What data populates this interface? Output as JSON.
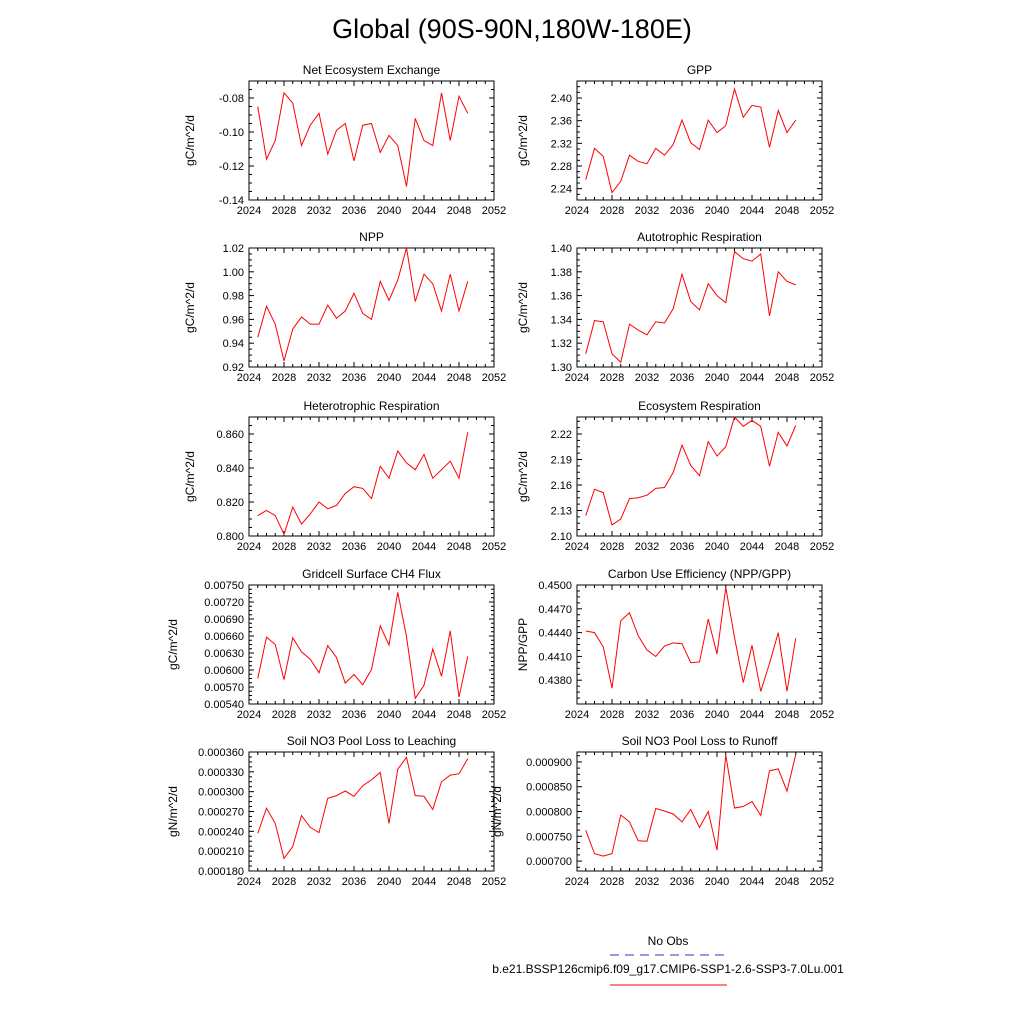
{
  "figure_title": "Global (90S-90N,180W-180E)",
  "legend": {
    "entries": [
      {
        "label": "No Obs",
        "color": "#3333cc",
        "dash": true
      },
      {
        "label": "b.e21.BSSP126cmip6.f09_g17.CMIP6-SSP1-2.6-SSP3-7.0Lu.001",
        "color": "#ff0000",
        "dash": false
      }
    ]
  },
  "chart_data": [
    {
      "type": "line",
      "title": "Net Ecosystem Exchange",
      "ylabel": "gC/m^2/d",
      "xlim": [
        2024,
        2052
      ],
      "xticks": [
        2024,
        2028,
        2032,
        2036,
        2040,
        2044,
        2048,
        2052
      ],
      "ylim": [
        -0.14,
        -0.07
      ],
      "yticks": [
        -0.14,
        -0.12,
        -0.1,
        -0.08
      ],
      "ytick_labels": [
        "-0.14",
        "-0.12",
        "-0.10",
        "-0.08"
      ],
      "series": [
        {
          "color": "#ff0000",
          "x": [
            2025,
            2026,
            2027,
            2028,
            2029,
            2030,
            2031,
            2032,
            2033,
            2034,
            2035,
            2036,
            2037,
            2038,
            2039,
            2040,
            2041,
            2042,
            2043,
            2044,
            2045,
            2046,
            2047,
            2048,
            2049
          ],
          "y": [
            -0.085,
            -0.116,
            -0.105,
            -0.077,
            -0.083,
            -0.108,
            -0.096,
            -0.089,
            -0.113,
            -0.099,
            -0.095,
            -0.117,
            -0.096,
            -0.095,
            -0.112,
            -0.102,
            -0.108,
            -0.132,
            -0.092,
            -0.105,
            -0.108,
            -0.077,
            -0.105,
            -0.079,
            -0.089
          ]
        }
      ]
    },
    {
      "type": "line",
      "title": "GPP",
      "ylabel": "gC/m^2/d",
      "xlim": [
        2024,
        2052
      ],
      "xticks": [
        2024,
        2028,
        2032,
        2036,
        2040,
        2044,
        2048,
        2052
      ],
      "ylim": [
        2.22,
        2.43
      ],
      "yticks": [
        2.24,
        2.28,
        2.32,
        2.36,
        2.4
      ],
      "ytick_labels": [
        "2.24",
        "2.28",
        "2.32",
        "2.36",
        "2.40"
      ],
      "series": [
        {
          "color": "#ff0000",
          "x": [
            2025,
            2026,
            2027,
            2028,
            2029,
            2030,
            2031,
            2032,
            2033,
            2034,
            2035,
            2036,
            2037,
            2038,
            2039,
            2040,
            2041,
            2042,
            2043,
            2044,
            2045,
            2046,
            2047,
            2048,
            2049
          ],
          "y": [
            2.256,
            2.311,
            2.297,
            2.233,
            2.253,
            2.299,
            2.288,
            2.284,
            2.311,
            2.299,
            2.318,
            2.361,
            2.321,
            2.309,
            2.361,
            2.339,
            2.351,
            2.416,
            2.366,
            2.387,
            2.384,
            2.313,
            2.378,
            2.339,
            2.361
          ]
        }
      ]
    },
    {
      "type": "line",
      "title": "NPP",
      "ylabel": "gC/m^2/d",
      "xlim": [
        2024,
        2052
      ],
      "xticks": [
        2024,
        2028,
        2032,
        2036,
        2040,
        2044,
        2048,
        2052
      ],
      "ylim": [
        0.92,
        1.02
      ],
      "yticks": [
        0.92,
        0.94,
        0.96,
        0.98,
        1.0,
        1.02
      ],
      "ytick_labels": [
        "0.92",
        "0.94",
        "0.96",
        "0.98",
        "1.00",
        "1.02"
      ],
      "series": [
        {
          "color": "#ff0000",
          "x": [
            2025,
            2026,
            2027,
            2028,
            2029,
            2030,
            2031,
            2032,
            2033,
            2034,
            2035,
            2036,
            2037,
            2038,
            2039,
            2040,
            2041,
            2042,
            2043,
            2044,
            2045,
            2046,
            2047,
            2048,
            2049
          ],
          "y": [
            0.945,
            0.971,
            0.956,
            0.925,
            0.952,
            0.962,
            0.956,
            0.956,
            0.972,
            0.961,
            0.967,
            0.982,
            0.965,
            0.96,
            0.992,
            0.976,
            0.993,
            1.02,
            0.975,
            0.998,
            0.99,
            0.967,
            0.998,
            0.967,
            0.992
          ]
        }
      ]
    },
    {
      "type": "line",
      "title": "Autotrophic Respiration",
      "ylabel": "gC/m^2/d",
      "xlim": [
        2024,
        2052
      ],
      "xticks": [
        2024,
        2028,
        2032,
        2036,
        2040,
        2044,
        2048,
        2052
      ],
      "ylim": [
        1.3,
        1.4
      ],
      "yticks": [
        1.3,
        1.32,
        1.34,
        1.36,
        1.38,
        1.4
      ],
      "ytick_labels": [
        "1.30",
        "1.32",
        "1.34",
        "1.36",
        "1.38",
        "1.40"
      ],
      "series": [
        {
          "color": "#ff0000",
          "x": [
            2025,
            2026,
            2027,
            2028,
            2029,
            2030,
            2031,
            2032,
            2033,
            2034,
            2035,
            2036,
            2037,
            2038,
            2039,
            2040,
            2041,
            2042,
            2043,
            2044,
            2045,
            2046,
            2047,
            2048,
            2049
          ],
          "y": [
            1.311,
            1.339,
            1.338,
            1.311,
            1.304,
            1.336,
            1.331,
            1.327,
            1.338,
            1.337,
            1.349,
            1.378,
            1.355,
            1.348,
            1.37,
            1.36,
            1.354,
            1.397,
            1.391,
            1.389,
            1.395,
            1.343,
            1.38,
            1.372,
            1.369
          ]
        }
      ]
    },
    {
      "type": "line",
      "title": "Heterotrophic Respiration",
      "ylabel": "gC/m^2/d",
      "xlim": [
        2024,
        2052
      ],
      "xticks": [
        2024,
        2028,
        2032,
        2036,
        2040,
        2044,
        2048,
        2052
      ],
      "ylim": [
        0.8,
        0.87
      ],
      "yticks": [
        0.8,
        0.82,
        0.84,
        0.86
      ],
      "ytick_labels": [
        "0.800",
        "0.820",
        "0.840",
        "0.860"
      ],
      "series": [
        {
          "color": "#ff0000",
          "x": [
            2025,
            2026,
            2027,
            2028,
            2029,
            2030,
            2031,
            2032,
            2033,
            2034,
            2035,
            2036,
            2037,
            2038,
            2039,
            2040,
            2041,
            2042,
            2043,
            2044,
            2045,
            2046,
            2047,
            2048,
            2049
          ],
          "y": [
            0.812,
            0.815,
            0.812,
            0.801,
            0.817,
            0.807,
            0.813,
            0.82,
            0.816,
            0.818,
            0.825,
            0.829,
            0.828,
            0.822,
            0.841,
            0.834,
            0.85,
            0.843,
            0.839,
            0.848,
            0.834,
            0.839,
            0.844,
            0.834,
            0.861
          ]
        }
      ]
    },
    {
      "type": "line",
      "title": "Ecosystem Respiration",
      "ylabel": "gC/m^2/d",
      "xlim": [
        2024,
        2052
      ],
      "xticks": [
        2024,
        2028,
        2032,
        2036,
        2040,
        2044,
        2048,
        2052
      ],
      "ylim": [
        2.1,
        2.24
      ],
      "yticks": [
        2.1,
        2.13,
        2.16,
        2.19,
        2.22
      ],
      "ytick_labels": [
        "2.10",
        "2.13",
        "2.16",
        "2.19",
        "2.22"
      ],
      "series": [
        {
          "color": "#ff0000",
          "x": [
            2025,
            2026,
            2027,
            2028,
            2029,
            2030,
            2031,
            2032,
            2033,
            2034,
            2035,
            2036,
            2037,
            2038,
            2039,
            2040,
            2041,
            2042,
            2043,
            2044,
            2045,
            2046,
            2047,
            2048,
            2049
          ],
          "y": [
            2.124,
            2.155,
            2.151,
            2.113,
            2.12,
            2.144,
            2.145,
            2.148,
            2.156,
            2.157,
            2.175,
            2.207,
            2.183,
            2.171,
            2.211,
            2.194,
            2.205,
            2.24,
            2.229,
            2.236,
            2.229,
            2.182,
            2.222,
            2.206,
            2.23
          ]
        }
      ]
    },
    {
      "type": "line",
      "title": "Gridcell Surface CH4 Flux",
      "ylabel": "gC/m^2/d",
      "xlim": [
        2024,
        2052
      ],
      "xticks": [
        2024,
        2028,
        2032,
        2036,
        2040,
        2044,
        2048,
        2052
      ],
      "ylim": [
        0.0054,
        0.0075
      ],
      "yticks": [
        0.0054,
        0.0057,
        0.006,
        0.0063,
        0.0066,
        0.0069,
        0.0072,
        0.0075
      ],
      "ytick_labels": [
        "0.00540",
        "0.00570",
        "0.00600",
        "0.00630",
        "0.00660",
        "0.00690",
        "0.00720",
        "0.00750"
      ],
      "series": [
        {
          "color": "#ff0000",
          "x": [
            2025,
            2026,
            2027,
            2028,
            2029,
            2030,
            2031,
            2032,
            2033,
            2034,
            2035,
            2036,
            2037,
            2038,
            2039,
            2040,
            2041,
            2042,
            2043,
            2044,
            2045,
            2046,
            2047,
            2048,
            2049
          ],
          "y": [
            0.00585,
            0.00658,
            0.00645,
            0.00583,
            0.00657,
            0.00632,
            0.00619,
            0.00595,
            0.00643,
            0.00622,
            0.00577,
            0.00592,
            0.00574,
            0.00601,
            0.00678,
            0.00644,
            0.00737,
            0.00659,
            0.0055,
            0.00573,
            0.00637,
            0.00589,
            0.00669,
            0.00552,
            0.00624
          ]
        }
      ]
    },
    {
      "type": "line",
      "title": "Carbon Use Efficiency (NPP/GPP)",
      "ylabel": "NPP/GPP",
      "xlim": [
        2024,
        2052
      ],
      "xticks": [
        2024,
        2028,
        2032,
        2036,
        2040,
        2044,
        2048,
        2052
      ],
      "ylim": [
        0.435,
        0.45
      ],
      "yticks": [
        0.438,
        0.441,
        0.444,
        0.447,
        0.45
      ],
      "ytick_labels": [
        "0.4380",
        "0.4410",
        "0.4440",
        "0.4470",
        "0.4500"
      ],
      "series": [
        {
          "color": "#ff0000",
          "x": [
            2025,
            2026,
            2027,
            2028,
            2029,
            2030,
            2031,
            2032,
            2033,
            2034,
            2035,
            2036,
            2037,
            2038,
            2039,
            2040,
            2041,
            2042,
            2043,
            2044,
            2045,
            2046,
            2047,
            2048,
            2049
          ],
          "y": [
            0.4442,
            0.444,
            0.4422,
            0.437,
            0.4455,
            0.4465,
            0.4436,
            0.4418,
            0.441,
            0.4423,
            0.4427,
            0.4426,
            0.4402,
            0.4403,
            0.4457,
            0.4413,
            0.4497,
            0.4434,
            0.4377,
            0.4424,
            0.4366,
            0.4401,
            0.444,
            0.4366,
            0.4433
          ]
        }
      ]
    },
    {
      "type": "line",
      "title": "Soil NO3 Pool Loss to Leaching",
      "ylabel": "gN/m^2/d",
      "xlim": [
        2024,
        2052
      ],
      "xticks": [
        2024,
        2028,
        2032,
        2036,
        2040,
        2044,
        2048,
        2052
      ],
      "ylim": [
        0.00018,
        0.00036
      ],
      "yticks": [
        0.00018,
        0.00021,
        0.00024,
        0.00027,
        0.0003,
        0.00033,
        0.00036
      ],
      "ytick_labels": [
        "0.000180",
        "0.000210",
        "0.000240",
        "0.000270",
        "0.000300",
        "0.000330",
        "0.000360"
      ],
      "series": [
        {
          "color": "#ff0000",
          "x": [
            2025,
            2026,
            2027,
            2028,
            2029,
            2030,
            2031,
            2032,
            2033,
            2034,
            2035,
            2036,
            2037,
            2038,
            2039,
            2040,
            2041,
            2042,
            2043,
            2044,
            2045,
            2046,
            2047,
            2048,
            2049
          ],
          "y": [
            0.000237,
            0.000275,
            0.000252,
            0.000199,
            0.000217,
            0.000264,
            0.000246,
            0.000238,
            0.00029,
            0.000294,
            0.000301,
            0.000293,
            0.000309,
            0.000318,
            0.000329,
            0.000252,
            0.000334,
            0.000352,
            0.000294,
            0.000293,
            0.000273,
            0.000315,
            0.000325,
            0.000327,
            0.00035
          ]
        }
      ]
    },
    {
      "type": "line",
      "title": "Soil NO3 Pool Loss to Runoff",
      "ylabel": "gN/m^2/d",
      "xlim": [
        2024,
        2052
      ],
      "xticks": [
        2024,
        2028,
        2032,
        2036,
        2040,
        2044,
        2048,
        2052
      ],
      "ylim": [
        0.00068,
        0.00092
      ],
      "yticks": [
        0.0007,
        0.00075,
        0.0008,
        0.00085,
        0.0009
      ],
      "ytick_labels": [
        "0.000700",
        "0.000750",
        "0.000800",
        "0.000850",
        "0.000900"
      ],
      "series": [
        {
          "color": "#ff0000",
          "x": [
            2025,
            2026,
            2027,
            2028,
            2029,
            2030,
            2031,
            2032,
            2033,
            2034,
            2035,
            2036,
            2037,
            2038,
            2039,
            2040,
            2041,
            2042,
            2043,
            2044,
            2045,
            2046,
            2047,
            2048,
            2049
          ],
          "y": [
            0.000762,
            0.000715,
            0.00071,
            0.000715,
            0.000793,
            0.000779,
            0.000741,
            0.00074,
            0.000806,
            0.000801,
            0.000795,
            0.000779,
            0.000804,
            0.000768,
            0.0008,
            0.000722,
            0.000914,
            0.000807,
            0.00081,
            0.00082,
            0.000792,
            0.000882,
            0.000886,
            0.000841,
            0.000915
          ]
        }
      ]
    }
  ]
}
